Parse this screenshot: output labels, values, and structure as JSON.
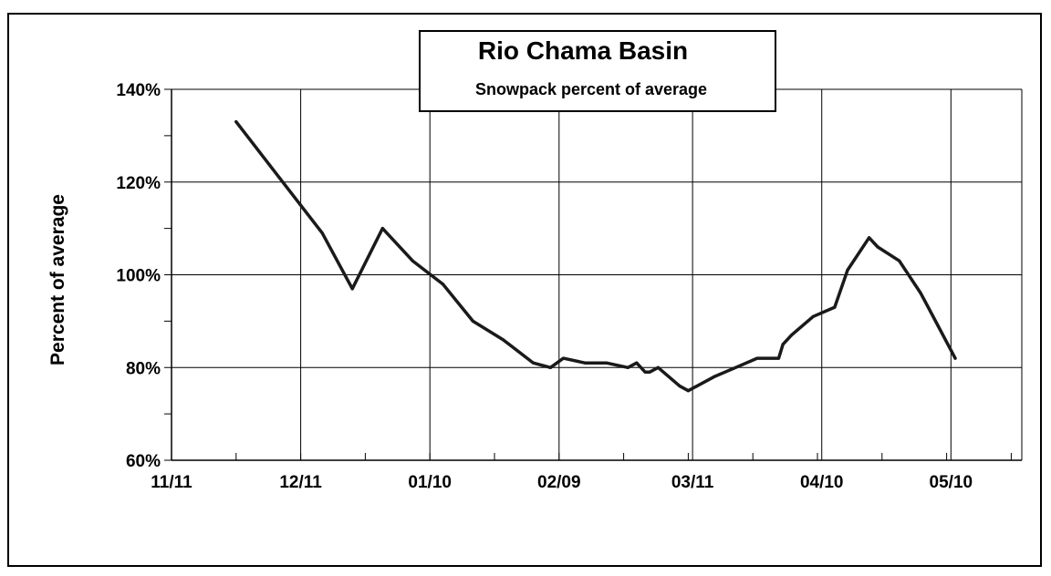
{
  "chart_data": {
    "type": "line",
    "title": "Rio Chama Basin",
    "subtitle": "Snowpack percent of average",
    "xlabel": "",
    "ylabel": "Percent of average",
    "x_tick_labels": [
      "11/11",
      "12/11",
      "01/10",
      "02/09",
      "03/11",
      "04/10",
      "05/10"
    ],
    "y_tick_labels": [
      "60%",
      "80%",
      "100%",
      "120%",
      "140%"
    ],
    "y_ticks": [
      60,
      80,
      100,
      120,
      140
    ],
    "ylim": [
      60,
      140
    ],
    "grid": true,
    "legend": "none",
    "series_color": "#1a1a1a",
    "series": [
      {
        "x": [
          "11/26",
          "12/06",
          "12/16",
          "12/23",
          "12/30",
          "01/06",
          "01/13",
          "01/20",
          "01/27",
          "02/03",
          "02/07",
          "02/10",
          "02/15",
          "02/20",
          "02/25",
          "02/27",
          "02/29",
          "03/01",
          "03/03",
          "03/08",
          "03/10",
          "03/16",
          "03/21",
          "03/26",
          "03/31",
          "04/01",
          "04/03",
          "04/08",
          "04/13",
          "04/16",
          "04/21",
          "04/23",
          "04/28",
          "05/03",
          "05/07",
          "05/11"
        ],
        "y": [
          133,
          121,
          109,
          97,
          110,
          103,
          98,
          90,
          86,
          81,
          80,
          82,
          81,
          81,
          80,
          81,
          79,
          79,
          80,
          76,
          75,
          78,
          80,
          82,
          82,
          85,
          87,
          91,
          93,
          101,
          108,
          106,
          103,
          96,
          89,
          82
        ]
      }
    ]
  }
}
